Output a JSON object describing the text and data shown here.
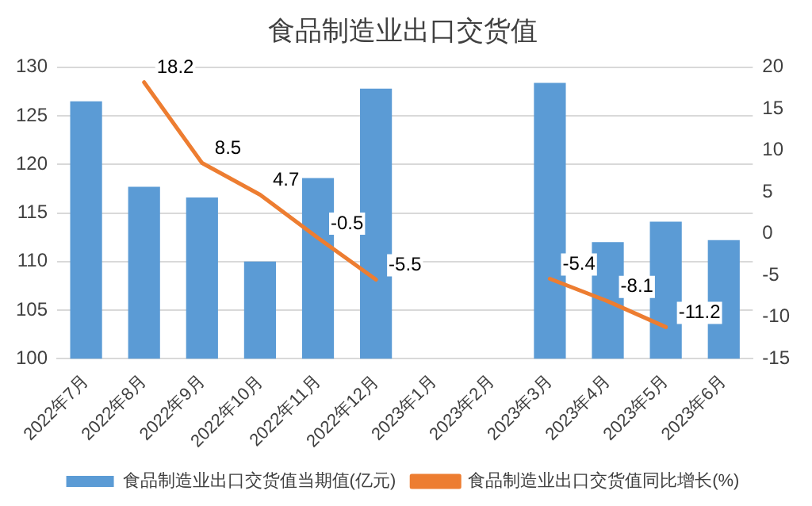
{
  "chart_data": {
    "type": "bar",
    "title": "食品制造业出口交货值",
    "categories": [
      "2022年7月",
      "2022年8月",
      "2022年9月",
      "2022年10月",
      "2022年11月",
      "2022年12月",
      "2023年1月",
      "2023年2月",
      "2023年3月",
      "2023年4月",
      "2023年5月",
      "2023年6月"
    ],
    "series": [
      {
        "name": "食品制造业出口交货值当期值(亿元)",
        "color": "#5b9bd5",
        "values": [
          126.5,
          117.7,
          116.6,
          110.0,
          118.6,
          127.8,
          null,
          null,
          128.4,
          112.0,
          114.1,
          112.2
        ]
      },
      {
        "name": "食品制造业出口交货值同比增长(%)",
        "type": "line",
        "axis": "y2",
        "color": "#ed7d31",
        "values": [
          null,
          18.2,
          8.5,
          4.7,
          -0.5,
          -5.5,
          null,
          null,
          -5.4,
          -8.1,
          -11.2,
          null
        ],
        "value_labels": [
          null,
          "18.2",
          "8.5",
          "4.7",
          "-0.5",
          "-5.5",
          null,
          null,
          "-5.4",
          "-8.1",
          "-11.2",
          null
        ]
      }
    ],
    "ylim": [
      100,
      130
    ],
    "yticks": [
      100,
      105,
      110,
      115,
      120,
      125,
      130
    ],
    "y2lim": [
      -15,
      20
    ],
    "y2ticks": [
      -15,
      -10,
      -5,
      0,
      5,
      10,
      15,
      20
    ],
    "grid": "y",
    "legend": "bottom",
    "marker": "none"
  }
}
